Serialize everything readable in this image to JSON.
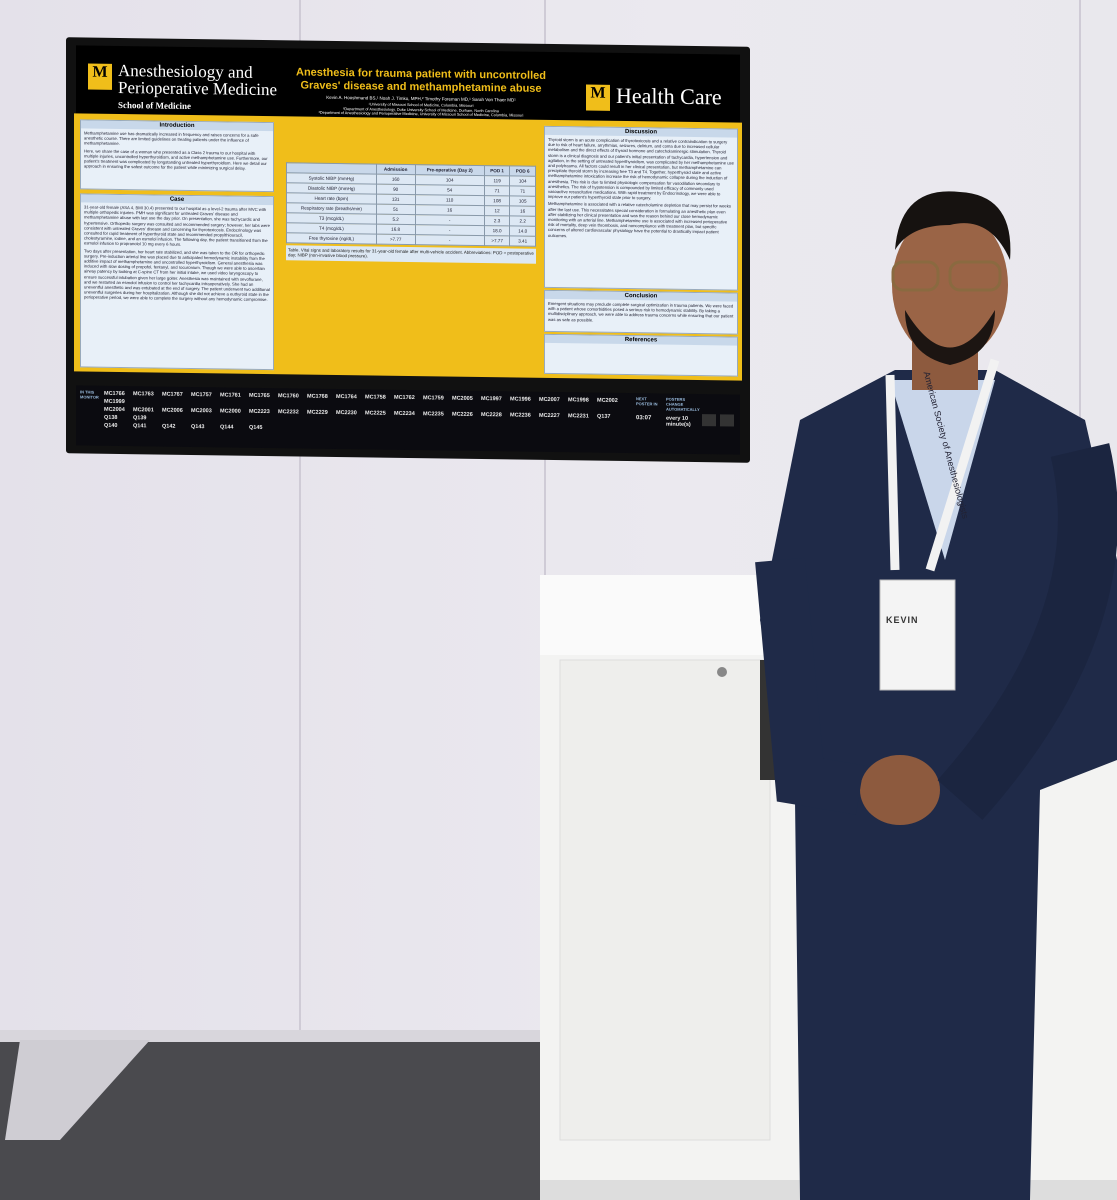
{
  "poster": {
    "header_left": {
      "title": "Anesthesiology and Perioperative Medicine",
      "subtitle": "School of Medicine"
    },
    "title": "Anesthesia for trauma patient with uncontrolled Graves' disease and methamphetamine abuse",
    "authors": "Kevin A. Hooshmand BS,¹ Noah J. Timko, MPH,² Timothy Foreman MD,¹ Sarah Von Thaer MD¹",
    "affiliations": [
      "¹University of Missouri School of Medicine, Columbia, Missouri",
      "²Department of Anesthesiology, Duke University School of Medicine, Durham, North Carolina",
      "³Department of Anesthesiology and Perioperative Medicine, University of Missouri School of Medicine, Columbia, Missouri"
    ],
    "header_right": "Health Care",
    "introduction": {
      "heading": "Introduction",
      "text": [
        "Methamphetamine use has dramatically increased in frequency and raises concerns for a safe anesthetic course. There are limited guidelines on treating patients under the influence of methamphetamine.",
        "Here, we share the case of a woman who presented as a Class 2 trauma to our hospital with multiple injuries, uncontrolled hyperthyroidism, and active methamphetamine use. Furthermore, our patient's treatment was complicated by longstanding untreated hyperthyroidism. Here we detail our approach in ensuring the safest outcome for the patient while minimizing surgical delay."
      ]
    },
    "case": {
      "heading": "Case",
      "text": [
        "31-year-old female (ASA 4, BMI 30.4) presented to our hospital as a level-2 trauma after MVC with multiple orthopedic injuries. PMH was significant for untreated Graves' disease and methamphetamine abuse with last use the day prior. On presentation, she was tachycardic and hypertensive. Orthopedic surgery was consulted and recommended surgery; however, her labs were consistent with untreated Graves' disease and concerning for thyrotoxicosis. Endocrinology was consulted for rapid treatment of hyperthyroid state and recommended propylthiouracil, cholestyramine, iodine, and an esmolol infusion. The following day, the patient transitioned from the esmolol infusion to propranolol 10 mg every 6 hours.",
        "Two days after presentation, her heart rate stabilized, and she was taken to the OR for orthopedic surgery. Pre-induction arterial line was placed due to anticipated hemodynamic instability from the additive impact of methamphetamine and uncontrolled hyperthyroidism. General anesthesia was induced with slow dosing of propofol, fentanyl, and rocuronium. Though we were able to ascertain airway patency by looking at C-spine CT from her initial intake, we used video laryngoscopy to ensure successful intubation given her large goiter. Anesthesia was maintained with sevoflurane, and we restarted an esmolol infusion to control her tachycardia intraoperatively. She had an uneventful anesthetic and was extubated at the end of surgery. The patient underwent two additional uneventful surgeries during her hospitalization. Although she did not achieve a euthyroid state in the perioperative period, we were able to complete the surgery without any hemodynamic compromise."
      ]
    },
    "table": {
      "columns": [
        "Admission",
        "Pre-operative (Day 2)",
        "POD 1",
        "POD 6"
      ],
      "rows": [
        [
          "Systolic NIBP (mmHg)",
          "160",
          "104",
          "119",
          "104"
        ],
        [
          "Diastolic NIBP (mmHg)",
          "90",
          "54",
          "71",
          "71"
        ],
        [
          "Heart rate (bpm)",
          "131",
          "110",
          "108",
          "105"
        ],
        [
          "Respiratory rate (breaths/min)",
          "51",
          "16",
          "12",
          "16"
        ],
        [
          "T3 (mcg/dL)",
          "5.2",
          "-",
          "2.3",
          "2.2"
        ],
        [
          "T4 (mcg/dL)",
          "16.8",
          "-",
          "18.0",
          "14.0"
        ],
        [
          "Free thyroxine (ng/dL)",
          ">7.77",
          "-",
          ">7.77",
          "3.41"
        ]
      ]
    },
    "caption": "Table. Vital signs and laboratory results for 31-year-old female after multi-vehicle accident. Abbreviations: POD = postoperative day; NIBP (non-invasive blood pressure).",
    "discussion": {
      "heading": "Discussion",
      "text": [
        "Thyroid storm is an acute complication of thyrotoxicosis and a relative contraindication to surgery due to risk of heart failure, arrythmias, seizures, delirium, and coma due to increased cellular metabolism and the direct effects of thyroid hormone and catecholaminergic stimulation. Thyroid storm is a clinical diagnosis and our patient's initial presentation of tachycardia, hypertension and agitation, in the setting of untreated hyperthyroidism, was complicated by her methamphetamine use and polytrauma. All factors could result in her clinical presentation, but methamphetamine can precipitate thyroid storm by increasing free T3 and T4. Together, hyperthyroid state and active methamphetamine intoxication increase the risk of hemodynamic collapse during the induction of anesthesia. This risk is due to limited physiologic compensation for vasodilation secondary to anesthetics. The risk of hypotension is compounded by limited efficacy of commonly used vasoactive resuscitative medications. With rapid treatment by Endocrinology, we were able to improve our patient's hyperthyroid state prior to surgery.",
        "Methamphetamine is associated with a relative catecholamine depletion that may persist for weeks after the last use. This necessitates special consideration in formulating an anesthetic plan even after stabilizing her clinical presentation and was the reason behind our close hemodynamic monitoring with an arterial line. Methamphetamine use is associated with increased perioperative risk of mortality, deep vein thrombosis, and noncompliance with treatment plan, but specific concerns of altered cardiovascular physiology have the potential to drastically impact patient outcomes."
      ]
    },
    "conclusion": {
      "heading": "Conclusion",
      "text": "Emergent situations may preclude complete surgical optimization in trauma patients. We were faced with a patient whose comorbidities posed a serious risk to hemodynamic stability. By taking a multidisciplinary approach, we were able to address trauma concerns while ensuring that our patient was as safe as possible."
    },
    "references": {
      "heading": "References"
    }
  },
  "monitor": {
    "label": "IN THIS MONITOR",
    "codes": [
      [
        "MC1766",
        "MC1763",
        "MC1767",
        "MC1757",
        "MC1761",
        "MC1765",
        "MC1760",
        "MC1768",
        "MC1764",
        "MC1758",
        "MC1762",
        "MC1759",
        "MC2005",
        "MC1997",
        "MC1996",
        "MC2007",
        "MC1998",
        "MC2002",
        "MC1999"
      ],
      [
        "MC2004",
        "MC2001",
        "MC2006",
        "MC2003",
        "MC2000",
        "MC2223",
        "MC2232",
        "MC2229",
        "MC2230",
        "MC2225",
        "MC2234",
        "MC2235",
        "MC2226",
        "MC2228",
        "MC2236",
        "MC2227",
        "MC2231",
        "Q137",
        "Q138",
        "Q139"
      ],
      [
        "Q140",
        "Q141",
        "Q142",
        "Q143",
        "Q144",
        "Q145"
      ]
    ],
    "next_label": "NEXT POSTER IN",
    "timer": "03:07",
    "change_label": "POSTERS CHANGE AUTOMATICALLY",
    "interval": "every 10 minute(s)"
  },
  "badge": {
    "name": "KEVIN",
    "lanyard": "American Society of Anesthesiologists"
  }
}
